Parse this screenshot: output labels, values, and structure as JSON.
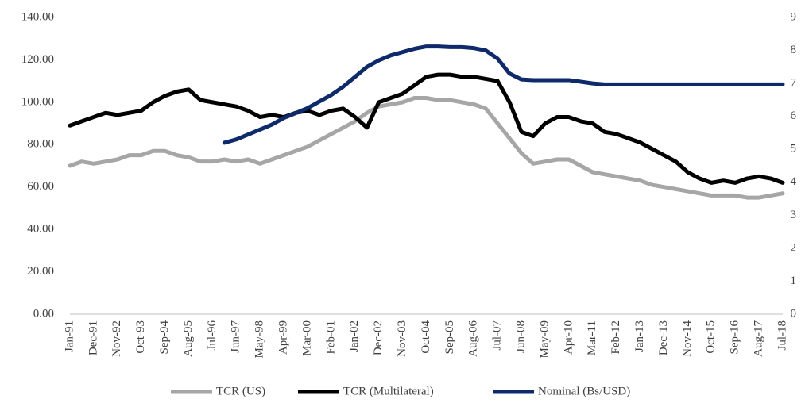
{
  "chart_data": {
    "type": "line",
    "categories": [
      "Jan-91",
      null,
      "Dec-91",
      null,
      "Nov-92",
      null,
      "Oct-93",
      null,
      "Sep-94",
      null,
      "Aug-95",
      null,
      "Jul-96",
      null,
      "Jun-97",
      null,
      "May-98",
      null,
      "Apr-99",
      null,
      "Mar-00",
      null,
      "Feb-01",
      null,
      "Jan-02",
      null,
      "Dec-02",
      null,
      "Nov-03",
      null,
      "Oct-04",
      null,
      "Sep-05",
      null,
      "Aug-06",
      null,
      "Jul-07",
      null,
      "Jun-08",
      null,
      "May-09",
      null,
      "Apr-10",
      null,
      "Mar-11",
      null,
      "Feb-12",
      null,
      "Jan-13",
      null,
      "Dec-13",
      null,
      "Nov-14",
      null,
      "Oct-15",
      null,
      "Sep-16",
      null,
      "Aug-17",
      null,
      "Jul-18"
    ],
    "series": [
      {
        "name": "TCR (US)",
        "color": "#a6a6a6",
        "values": [
          70,
          72,
          71,
          72,
          73,
          75,
          75,
          77,
          77,
          75,
          74,
          72,
          72,
          73,
          72,
          73,
          71,
          73,
          75,
          77,
          79,
          82,
          85,
          88,
          91,
          95,
          98,
          99,
          100,
          102,
          102,
          101,
          101,
          100,
          99,
          97,
          90,
          83,
          76,
          71,
          72,
          73,
          73,
          70,
          67,
          66,
          65,
          64,
          63,
          61,
          60,
          59,
          58,
          57,
          56,
          56,
          56,
          55,
          55,
          56,
          57
        ]
      },
      {
        "name": "TCR (Multilateral)",
        "color": "#000000",
        "values": [
          89,
          91,
          93,
          95,
          94,
          95,
          96,
          100,
          103,
          105,
          106,
          101,
          100,
          99,
          98,
          96,
          93,
          94,
          93,
          95,
          96,
          94,
          96,
          97,
          93,
          88,
          100,
          102,
          104,
          108,
          112,
          113,
          113,
          112,
          112,
          111,
          110,
          100,
          86,
          84,
          90,
          93,
          93,
          91,
          90,
          86,
          85,
          83,
          81,
          78,
          75,
          72,
          67,
          64,
          62,
          63,
          62,
          64,
          65,
          64,
          62
        ]
      },
      {
        "name": "Nominal (Bs/USD)",
        "color": "#0e2a6b",
        "axis": "y2",
        "values": [
          null,
          null,
          null,
          null,
          null,
          null,
          null,
          null,
          null,
          null,
          null,
          null,
          null,
          5.2,
          5.3,
          5.45,
          5.6,
          5.75,
          5.95,
          6.1,
          6.25,
          6.45,
          6.65,
          6.9,
          7.2,
          7.5,
          7.7,
          7.85,
          7.95,
          8.05,
          8.12,
          8.12,
          8.1,
          8.1,
          8.07,
          8.0,
          7.75,
          7.3,
          7.12,
          7.1,
          7.1,
          7.1,
          7.1,
          7.05,
          7.0,
          6.97,
          6.97,
          6.97,
          6.97,
          6.97,
          6.97,
          6.97,
          6.97,
          6.97,
          6.97,
          6.97,
          6.97,
          6.97,
          6.97,
          6.97,
          6.97
        ]
      }
    ],
    "ylim": [
      0,
      140
    ],
    "yticks": [
      {
        "value": 0,
        "label": "0.00"
      },
      {
        "value": 20,
        "label": "20.00"
      },
      {
        "value": 40,
        "label": "40.00"
      },
      {
        "value": 60,
        "label": "60.00"
      },
      {
        "value": 80,
        "label": "80.00"
      },
      {
        "value": 100,
        "label": "100.00"
      },
      {
        "value": 120,
        "label": "120.00"
      },
      {
        "value": 140,
        "label": "140.00"
      }
    ],
    "y2lim": [
      0,
      9
    ],
    "y2ticks": [
      0,
      1,
      2,
      3,
      4,
      5,
      6,
      7,
      8,
      9
    ],
    "legend": "bottom"
  }
}
